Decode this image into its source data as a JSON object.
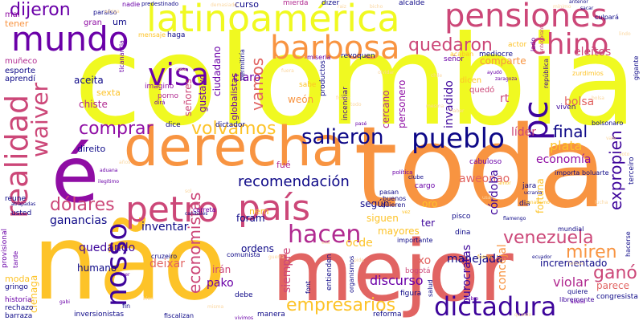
{
  "palette": {
    "yellow": "#f0f921",
    "gold": "#fdc328",
    "orange": "#f89441",
    "salmon": "#e16462",
    "rose": "#cc4778",
    "magenta": "#b12a90",
    "purple": "#8f0da4",
    "violet": "#6a00a8",
    "indigo": "#3d049b",
    "navy": "#0d0887",
    "pale": "#fbd7a0"
  },
  "words": [
    {
      "text": "colombia",
      "color": "yellow"
    },
    {
      "text": "toda",
      "color": "orange"
    },
    {
      "text": "não",
      "color": "gold"
    },
    {
      "text": "mejor",
      "color": "salmon"
    },
    {
      "text": "derecha",
      "color": "orange"
    },
    {
      "text": "é",
      "color": "purple"
    },
    {
      "text": "latinoamérica",
      "color": "yellow"
    },
    {
      "text": "pensiones",
      "color": "rose"
    },
    {
      "text": "mundo",
      "color": "violet"
    },
    {
      "text": "realidad",
      "color": "rose"
    },
    {
      "text": "visa",
      "color": "violet"
    },
    {
      "text": "barbosa",
      "color": "orange"
    },
    {
      "text": "chino",
      "color": "rose"
    },
    {
      "text": "pc",
      "color": "indigo"
    },
    {
      "text": "país",
      "color": "rose"
    },
    {
      "text": "petro",
      "color": "rose"
    },
    {
      "text": "pueblo",
      "color": "navy"
    },
    {
      "text": "dictadura",
      "color": "indigo"
    },
    {
      "text": "hacen",
      "color": "magenta"
    },
    {
      "text": "nosso",
      "color": "indigo"
    },
    {
      "text": "waiver",
      "color": "rose"
    },
    {
      "text": "comprar",
      "color": "purple"
    },
    {
      "text": "volvamos",
      "color": "gold"
    },
    {
      "text": "salieron",
      "color": "navy"
    },
    {
      "text": "dólares",
      "color": "rose"
    },
    {
      "text": "venezuela",
      "color": "rose"
    },
    {
      "text": "empresarios",
      "color": "gold"
    },
    {
      "text": "quedaron",
      "color": "rose"
    },
    {
      "text": "recomendación",
      "color": "navy"
    },
    {
      "text": "dijeron",
      "color": "violet"
    },
    {
      "text": "vamos",
      "color": "salmon"
    },
    {
      "text": "economistas",
      "color": "rose"
    },
    {
      "text": "final",
      "color": "navy"
    },
    {
      "text": "expropien",
      "color": "indigo"
    },
    {
      "text": "ganó",
      "color": "rose"
    },
    {
      "text": "miren",
      "color": "orange"
    },
    {
      "text": "manejada",
      "color": "navy"
    },
    {
      "text": "ganancias",
      "color": "navy"
    },
    {
      "text": "quedando",
      "color": "indigo"
    },
    {
      "text": "inventar",
      "color": "navy"
    },
    {
      "text": "discurso",
      "color": "violet"
    },
    {
      "text": "violar",
      "color": "magenta"
    },
    {
      "text": "plata",
      "color": "gold"
    },
    {
      "text": "economía",
      "color": "purple"
    },
    {
      "text": "líder",
      "color": "rose"
    },
    {
      "text": "bolsa",
      "color": "salmon"
    },
    {
      "text": "eleitos",
      "color": "rose"
    },
    {
      "text": "comparte",
      "color": "orange"
    },
    {
      "text": "aceita",
      "color": "navy"
    },
    {
      "text": "chiste",
      "color": "magenta"
    },
    {
      "text": "sexta",
      "color": "gold"
    },
    {
      "text": "claro",
      "color": "violet"
    },
    {
      "text": "gustavo",
      "color": "violet"
    },
    {
      "text": "ciudadano",
      "color": "violet"
    },
    {
      "text": "invadido",
      "color": "indigo"
    },
    {
      "text": "cercano",
      "color": "magenta"
    },
    {
      "text": "personero",
      "color": "purple"
    },
    {
      "text": "weón",
      "color": "orange"
    },
    {
      "text": "señores",
      "color": "rose"
    },
    {
      "text": "globalistas",
      "color": "violet"
    },
    {
      "text": "aweonao",
      "color": "salmon"
    },
    {
      "text": "irán",
      "color": "rose"
    },
    {
      "text": "pako",
      "color": "violet"
    },
    {
      "text": "humano",
      "color": "navy"
    },
    {
      "text": "deixar",
      "color": "salmon"
    },
    {
      "text": "siempre",
      "color": "rose"
    },
    {
      "text": "mayores",
      "color": "gold"
    },
    {
      "text": "según",
      "color": "navy"
    },
    {
      "text": "siguen",
      "color": "gold"
    },
    {
      "text": "ocde",
      "color": "gold"
    },
    {
      "text": "ordens",
      "color": "navy"
    },
    {
      "text": "foram",
      "color": "navy"
    },
    {
      "text": "lixo",
      "color": "salmon"
    },
    {
      "text": "oro",
      "color": "gold"
    },
    {
      "text": "ter",
      "color": "indigo"
    },
    {
      "text": "córdoba",
      "color": "indigo"
    },
    {
      "text": "fortuna",
      "color": "gold"
    },
    {
      "text": "incrementado",
      "color": "navy"
    },
    {
      "text": "parece",
      "color": "salmon"
    },
    {
      "text": "concejal",
      "color": "orange"
    },
    {
      "text": "burocratas",
      "color": "indigo"
    },
    {
      "text": "ciénaga",
      "color": "gold"
    },
    {
      "text": "moda",
      "color": "gold"
    },
    {
      "text": "tener",
      "color": "orange"
    },
    {
      "text": "curso",
      "color": "navy"
    },
    {
      "text": "fué",
      "color": "magenta"
    },
    {
      "text": "nem",
      "color": "gold"
    },
    {
      "text": "direito",
      "color": "navy"
    },
    {
      "text": "esporte",
      "color": "navy"
    },
    {
      "text": "aprendí",
      "color": "navy"
    },
    {
      "text": "muñeco",
      "color": "magenta"
    },
    {
      "text": "um",
      "color": "navy"
    },
    {
      "text": "gran",
      "color": "purple"
    },
    {
      "text": "mal",
      "color": "purple"
    },
    {
      "text": "dice",
      "color": "navy"
    },
    {
      "text": "dictador",
      "color": "navy"
    },
    {
      "text": "alcalde",
      "color": "navy"
    },
    {
      "text": "dizer",
      "color": "navy"
    },
    {
      "text": "mierda",
      "color": "magenta"
    },
    {
      "text": "revoquen",
      "color": "navy"
    },
    {
      "text": "señor",
      "color": "violet"
    },
    {
      "text": "mediocre",
      "color": "navy"
    },
    {
      "text": "acaban",
      "color": "gold"
    },
    {
      "text": "actor",
      "color": "gold"
    },
    {
      "text": "zurdimios",
      "color": "gold"
    },
    {
      "text": "viven",
      "color": "indigo"
    },
    {
      "text": "república",
      "color": "indigo"
    },
    {
      "text": "sabe",
      "color": "gold"
    },
    {
      "text": "dicen",
      "color": "gold"
    },
    {
      "text": "quedó",
      "color": "rose"
    },
    {
      "text": "rt",
      "color": "rose"
    },
    {
      "text": "incendiar",
      "color": "indigo"
    },
    {
      "text": "productos",
      "color": "navy"
    },
    {
      "text": "permitiría",
      "color": "navy"
    },
    {
      "text": "haga",
      "color": "navy"
    },
    {
      "text": "mensaje",
      "color": "gold"
    },
    {
      "text": "porno",
      "color": "magenta"
    },
    {
      "text": "imagino",
      "color": "purple"
    },
    {
      "text": "comunista",
      "color": "navy"
    },
    {
      "text": "cruzeiro",
      "color": "navy"
    },
    {
      "text": "usted",
      "color": "navy"
    },
    {
      "text": "reune",
      "color": "navy"
    },
    {
      "text": "provisional",
      "color": "violet"
    },
    {
      "text": "gringo",
      "color": "navy"
    },
    {
      "text": "historia",
      "color": "violet"
    },
    {
      "text": "rechazo",
      "color": "navy"
    },
    {
      "text": "barraza",
      "color": "navy"
    },
    {
      "text": "inversionistas",
      "color": "navy"
    },
    {
      "text": "fiscalizan",
      "color": "navy"
    },
    {
      "text": "manera",
      "color": "navy"
    },
    {
      "text": "reforma",
      "color": "navy"
    },
    {
      "text": "figura",
      "color": "navy"
    },
    {
      "text": "entienden",
      "color": "navy"
    },
    {
      "text": "organismos",
      "color": "navy"
    },
    {
      "text": "importante",
      "color": "navy"
    },
    {
      "text": "bogotá",
      "color": "rose"
    },
    {
      "text": "debe",
      "color": "navy"
    },
    {
      "text": "pisco",
      "color": "navy"
    },
    {
      "text": "dina",
      "color": "navy"
    },
    {
      "text": "jara",
      "color": "navy"
    },
    {
      "text": "mundial",
      "color": "navy"
    },
    {
      "text": "dia",
      "color": "navy"
    },
    {
      "text": "congresista",
      "color": "navy"
    },
    {
      "text": "quiere",
      "color": "navy"
    },
    {
      "text": "libremente",
      "color": "indigo"
    },
    {
      "text": "bolsonaro",
      "color": "navy"
    },
    {
      "text": "importa",
      "color": "navy"
    },
    {
      "text": "terceiro",
      "color": "navy"
    },
    {
      "text": "hacerse",
      "color": "navy"
    },
    {
      "text": "gigante",
      "color": "navy"
    },
    {
      "text": "cabuloso",
      "color": "violet"
    },
    {
      "text": "cargo",
      "color": "violet"
    },
    {
      "text": "quieren",
      "color": "navy"
    },
    {
      "text": "buenos",
      "color": "navy"
    },
    {
      "text": "pasan",
      "color": "navy"
    },
    {
      "text": "salud",
      "color": "navy"
    },
    {
      "text": "font",
      "color": "navy"
    },
    {
      "text": "paraíso",
      "color": "navy"
    },
    {
      "text": "predestinado",
      "color": "navy"
    },
    {
      "text": "nadie",
      "color": "violet"
    },
    {
      "text": "culpará",
      "color": "navy"
    },
    {
      "text": "lado",
      "color": "violet"
    },
    {
      "text": "miseria",
      "color": "violet"
    },
    {
      "text": "dirá",
      "color": "violet"
    },
    {
      "text": "zaragoza",
      "color": "violet"
    },
    {
      "text": "pasé",
      "color": "violet"
    },
    {
      "text": "tarde",
      "color": "violet"
    },
    {
      "text": "atrapadas",
      "color": "navy"
    },
    {
      "text": "carreta",
      "color": "violet"
    },
    {
      "text": "caníbales",
      "color": "navy"
    },
    {
      "text": "política",
      "color": "violet"
    },
    {
      "text": "clube",
      "color": "navy"
    },
    {
      "text": "fanatismo",
      "color": "gold"
    },
    {
      "text": "ucrania",
      "color": "navy"
    },
    {
      "text": "flamengo",
      "color": "navy"
    },
    {
      "text": "ecuador",
      "color": "navy"
    },
    {
      "text": "leer",
      "color": "violet"
    },
    {
      "text": "gabi",
      "color": "violet"
    },
    {
      "text": "fin",
      "color": "navy"
    },
    {
      "text": "vivimos",
      "color": "violet"
    },
    {
      "text": "adeus",
      "color": "violet"
    },
    {
      "text": "dobro",
      "color": "violet"
    },
    {
      "text": "fuerte",
      "color": "gold"
    },
    {
      "text": "anterior",
      "color": "navy"
    },
    {
      "text": "sacar",
      "color": "navy"
    },
    {
      "text": "aduana",
      "color": "violet"
    },
    {
      "text": "ilegítimo",
      "color": "violet"
    },
    {
      "text": "amor",
      "color": "gold"
    },
    {
      "text": "vez",
      "color": "gold"
    },
    {
      "text": "ayudó",
      "color": "violet"
    },
    {
      "text": "amiga",
      "color": "pale"
    },
    {
      "text": "demasiado",
      "color": "pale"
    },
    {
      "text": "raiz",
      "color": "pale"
    },
    {
      "text": "bicho",
      "color": "pale"
    },
    {
      "text": "mínimo",
      "color": "pale"
    },
    {
      "text": "lindo",
      "color": "pale"
    },
    {
      "text": "voto",
      "color": "pale"
    },
    {
      "text": "hemos",
      "color": "pale"
    },
    {
      "text": "quanto",
      "color": "pale"
    },
    {
      "text": "ella",
      "color": "pale"
    },
    {
      "text": "pide",
      "color": "pale"
    },
    {
      "text": "guerra",
      "color": "pale"
    },
    {
      "text": "sol",
      "color": "pale"
    },
    {
      "text": "años",
      "color": "pale"
    },
    {
      "text": "cosa",
      "color": "pale"
    },
    {
      "text": "fuera",
      "color": "pale"
    },
    {
      "text": "olvidar",
      "color": "pale"
    },
    {
      "text": "chile",
      "color": "pale"
    },
    {
      "text": "frente",
      "color": "pale"
    },
    {
      "text": "mesma",
      "color": "pale"
    },
    {
      "text": "haber",
      "color": "pale"
    },
    {
      "text": "ticanantia",
      "color": "violet"
    },
    {
      "text": "anteriorante",
      "color": "rose"
    },
    {
      "text": "bolsa",
      "color": "pale"
    },
    {
      "text": "vale",
      "color": "pale"
    },
    {
      "text": "lucha",
      "color": "pale"
    },
    {
      "text": "usar",
      "color": "pale"
    },
    {
      "text": "todo",
      "color": "pale"
    },
    {
      "text": "boluarte",
      "color": "navy"
    },
    {
      "text": "bien",
      "color": "pale"
    },
    {
      "text": "misma",
      "color": "pale"
    }
  ]
}
